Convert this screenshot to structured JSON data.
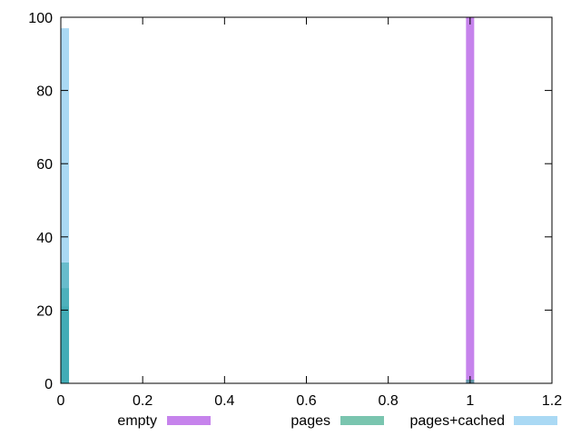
{
  "chart_data": {
    "type": "bar",
    "title": "",
    "xlabel": "",
    "ylabel": "",
    "xlim": [
      0,
      1.2
    ],
    "ylim": [
      0,
      100
    ],
    "xticks": [
      "0",
      "0.2",
      "0.4",
      "0.6",
      "0.8",
      "1",
      "1.2"
    ],
    "yticks": [
      "0",
      "20",
      "40",
      "60",
      "80",
      "100"
    ],
    "grid": false,
    "legend_position": "bottom",
    "bin_width": 0.02,
    "series": [
      {
        "name": "empty",
        "color": "#a030e0",
        "opacity": 0.6,
        "bars": [
          {
            "x": 1.0,
            "y": 100
          }
        ]
      },
      {
        "name": "pages",
        "color": "#229e79",
        "opacity": 0.6,
        "bars": [
          {
            "x": 0.01,
            "y": 33
          },
          {
            "x": 0.01,
            "y": 26
          },
          {
            "x": 0.01,
            "y": 21
          },
          {
            "x": 1.0,
            "y": 1
          }
        ]
      },
      {
        "name": "pages+cached",
        "color": "#56b4e9",
        "opacity": 0.5,
        "bars": [
          {
            "x": 0.01,
            "y": 97
          }
        ]
      }
    ]
  }
}
